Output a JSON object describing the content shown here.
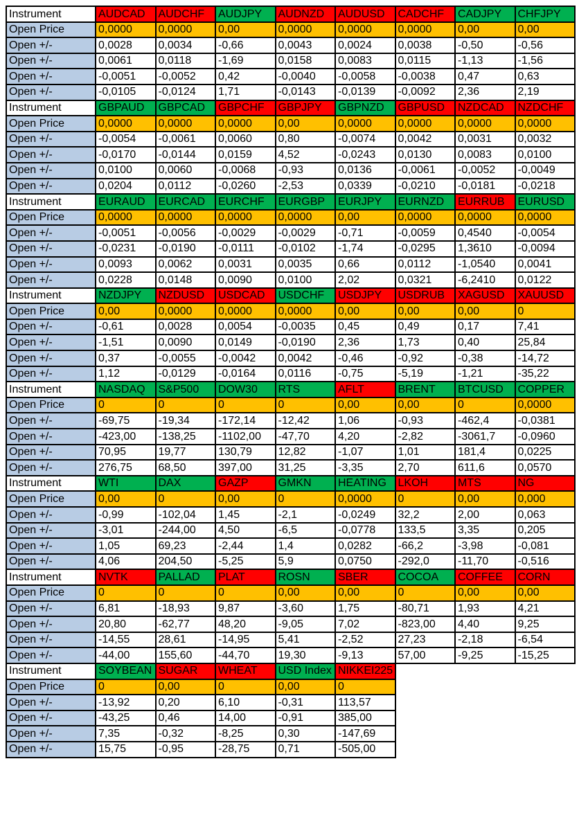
{
  "row_labels": {
    "instrument": "Instrument",
    "open_price": "Open Price",
    "open_delta": "Open +/-"
  },
  "colors": {
    "header_red": "#FF0000",
    "header_green": "#00B050",
    "price_orange": "#FFC000",
    "label_blue": "#B8CCE4",
    "border_black": "#000000"
  },
  "blocks": [
    {
      "instruments": [
        {
          "name": "AUDCAD",
          "header_color": "red",
          "open_price": "0,0000",
          "deltas": [
            "0,0028",
            "0,0061",
            "-0,0051",
            "-0,0105"
          ]
        },
        {
          "name": "AUDCHF",
          "header_color": "red",
          "open_price": "0,0000",
          "deltas": [
            "0,0034",
            "0,0118",
            "-0,0052",
            "-0,0124"
          ]
        },
        {
          "name": "AUDJPY",
          "header_color": "green",
          "open_price": "0,00",
          "deltas": [
            "-0,66",
            "-1,69",
            "0,42",
            "1,71"
          ]
        },
        {
          "name": "AUDNZD",
          "header_color": "red",
          "open_price": "0,0000",
          "deltas": [
            "0,0043",
            "0,0158",
            "-0,0040",
            "-0,0143"
          ]
        },
        {
          "name": "AUDUSD",
          "header_color": "red",
          "open_price": "0,0000",
          "deltas": [
            "0,0024",
            "0,0083",
            "-0,0058",
            "-0,0139"
          ]
        },
        {
          "name": "CADCHF",
          "header_color": "red",
          "open_price": "0,0000",
          "deltas": [
            "0,0038",
            "0,0115",
            "-0,0038",
            "-0,0092"
          ]
        },
        {
          "name": "CADJPY",
          "header_color": "green",
          "open_price": "0,00",
          "deltas": [
            "-0,50",
            "-1,13",
            "0,47",
            "2,36"
          ]
        },
        {
          "name": "CHFJPY",
          "header_color": "green",
          "open_price": "0,00",
          "deltas": [
            "-0,56",
            "-1,56",
            "0,63",
            "2,19"
          ]
        }
      ]
    },
    {
      "instruments": [
        {
          "name": "GBPAUD",
          "header_color": "green",
          "open_price": "0,0000",
          "deltas": [
            "-0,0054",
            "-0,0170",
            "0,0100",
            "0,0204"
          ]
        },
        {
          "name": "GBPCAD",
          "header_color": "green",
          "open_price": "0,0000",
          "deltas": [
            "-0,0061",
            "-0,0144",
            "0,0060",
            "0,0112"
          ]
        },
        {
          "name": "GBPCHF",
          "header_color": "red",
          "open_price": "0,0000",
          "deltas": [
            "0,0060",
            "0,0159",
            "-0,0068",
            "-0,0260"
          ]
        },
        {
          "name": "GBPJPY",
          "header_color": "red",
          "open_price": "0,00",
          "deltas": [
            "0,80",
            "4,52",
            "-0,93",
            "-2,53"
          ]
        },
        {
          "name": "GBPNZD",
          "header_color": "green",
          "open_price": "0,0000",
          "deltas": [
            "-0,0074",
            "-0,0243",
            "0,0136",
            "0,0339"
          ]
        },
        {
          "name": "GBPUSD",
          "header_color": "red",
          "open_price": "0,0000",
          "deltas": [
            "0,0042",
            "0,0130",
            "-0,0061",
            "-0,0210"
          ]
        },
        {
          "name": "NZDCAD",
          "header_color": "red",
          "open_price": "0,0000",
          "deltas": [
            "0,0031",
            "0,0083",
            "-0,0052",
            "-0,0181"
          ]
        },
        {
          "name": "NZDCHF",
          "header_color": "red",
          "open_price": "0,0000",
          "deltas": [
            "0,0032",
            "0,0100",
            "-0,0049",
            "-0,0218"
          ]
        }
      ]
    },
    {
      "instruments": [
        {
          "name": "EURAUD",
          "header_color": "green",
          "open_price": "0,0000",
          "deltas": [
            "-0,0051",
            "-0,0231",
            "0,0093",
            "0,0228"
          ]
        },
        {
          "name": "EURCAD",
          "header_color": "green",
          "open_price": "0,0000",
          "deltas": [
            "-0,0056",
            "-0,0190",
            "0,0062",
            "0,0148"
          ]
        },
        {
          "name": "EURCHF",
          "header_color": "green",
          "open_price": "0,0000",
          "deltas": [
            "-0,0029",
            "-0,0111",
            "0,0031",
            "0,0090"
          ]
        },
        {
          "name": "EURGBP",
          "header_color": "green",
          "open_price": "0,0000",
          "deltas": [
            "-0,0029",
            "-0,0102",
            "0,0035",
            "0,0100"
          ]
        },
        {
          "name": "EURJPY",
          "header_color": "green",
          "open_price": "0,00",
          "deltas": [
            "-0,71",
            "-1,74",
            "0,66",
            "2,02"
          ]
        },
        {
          "name": "EURNZD",
          "header_color": "green",
          "open_price": "0,0000",
          "deltas": [
            "-0,0059",
            "-0,0295",
            "0,0112",
            "0,0321"
          ]
        },
        {
          "name": "EURRUB",
          "header_color": "red",
          "open_price": "0,0000",
          "deltas": [
            "0,4540",
            "1,3610",
            "-1,0540",
            "-6,2410"
          ]
        },
        {
          "name": "EURUSD",
          "header_color": "green",
          "open_price": "0,0000",
          "deltas": [
            "-0,0054",
            "-0,0094",
            "0,0041",
            "0,0122"
          ]
        }
      ]
    },
    {
      "instruments": [
        {
          "name": "NZDJPY",
          "header_color": "green",
          "open_price": "0,00",
          "deltas": [
            "-0,61",
            "-1,51",
            "0,37",
            "1,12"
          ]
        },
        {
          "name": "NZDUSD",
          "header_color": "red",
          "open_price": "0,0000",
          "deltas": [
            "0,0028",
            "0,0090",
            "-0,0055",
            "-0,0129"
          ]
        },
        {
          "name": "USDCAD",
          "header_color": "red",
          "open_price": "0,0000",
          "deltas": [
            "0,0054",
            "0,0149",
            "-0,0042",
            "-0,0164"
          ]
        },
        {
          "name": "USDCHF",
          "header_color": "green",
          "open_price": "0,0000",
          "deltas": [
            "-0,0035",
            "-0,0190",
            "0,0042",
            "0,0116"
          ]
        },
        {
          "name": "USDJPY",
          "header_color": "red",
          "open_price": "0,00",
          "deltas": [
            "0,45",
            "2,36",
            "-0,46",
            "-0,75"
          ]
        },
        {
          "name": "USDRUB",
          "header_color": "red",
          "open_price": "0,00",
          "deltas": [
            "0,49",
            "1,73",
            "-0,92",
            "-5,19"
          ]
        },
        {
          "name": "XAGUSD",
          "header_color": "red",
          "open_price": "0,00",
          "deltas": [
            "0,17",
            "0,40",
            "-0,38",
            "-1,21"
          ]
        },
        {
          "name": "XAUUSD",
          "header_color": "red",
          "open_price": "0",
          "deltas": [
            "7,41",
            "25,84",
            "-14,72",
            "-35,22"
          ]
        }
      ]
    },
    {
      "instruments": [
        {
          "name": "NASDAQ",
          "header_color": "green",
          "open_price": "0",
          "deltas": [
            "-69,75",
            "-423,00",
            "70,95",
            "276,75"
          ]
        },
        {
          "name": "S&P500",
          "header_color": "green",
          "open_price": "0",
          "deltas": [
            "-19,34",
            "-138,25",
            "19,77",
            "68,50"
          ]
        },
        {
          "name": "DOW30",
          "header_color": "green",
          "open_price": "0",
          "deltas": [
            "-172,14",
            "-1102,00",
            "130,79",
            "397,00"
          ]
        },
        {
          "name": "RTS",
          "header_color": "green",
          "open_price": "0",
          "deltas": [
            "-12,42",
            "-47,70",
            "12,82",
            "31,25"
          ]
        },
        {
          "name": "AFLT",
          "header_color": "red",
          "open_price": "0,00",
          "deltas": [
            "1,06",
            "4,20",
            "-1,07",
            "-3,35"
          ]
        },
        {
          "name": "BRENT",
          "header_color": "green",
          "open_price": "0,00",
          "deltas": [
            "-0,93",
            "-2,82",
            "1,01",
            "2,70"
          ]
        },
        {
          "name": "BTCUSD",
          "header_color": "green",
          "open_price": "0",
          "deltas": [
            "-462,4",
            "-3061,7",
            "181,4",
            "611,6"
          ]
        },
        {
          "name": "COPPER",
          "header_color": "green",
          "open_price": "0,0000",
          "deltas": [
            "-0,0381",
            "-0,0960",
            "0,0225",
            "0,0570"
          ]
        }
      ]
    },
    {
      "instruments": [
        {
          "name": "WTI",
          "header_color": "green",
          "open_price": "0,00",
          "deltas": [
            "-0,99",
            "-3,01",
            "1,05",
            "4,06"
          ]
        },
        {
          "name": "DAX",
          "header_color": "green",
          "open_price": "0",
          "deltas": [
            "-102,04",
            "-244,00",
            "69,23",
            "204,50"
          ]
        },
        {
          "name": "GAZP",
          "header_color": "red",
          "open_price": "0,00",
          "deltas": [
            "1,45",
            "4,50",
            "-2,44",
            "-5,25"
          ]
        },
        {
          "name": "GMKN",
          "header_color": "green",
          "open_price": "0",
          "deltas": [
            "-2,1",
            "-6,5",
            "1,4",
            "5,9"
          ]
        },
        {
          "name": "HEATING",
          "header_color": "green",
          "open_price": "0,0000",
          "deltas": [
            "-0,0249",
            "-0,0778",
            "0,0282",
            "0,0750"
          ]
        },
        {
          "name": "LKOH",
          "header_color": "red",
          "open_price": "0",
          "deltas": [
            "32,2",
            "133,5",
            "-66,2",
            "-292,0"
          ]
        },
        {
          "name": "MTS",
          "header_color": "red",
          "open_price": "0,00",
          "deltas": [
            "2,00",
            "3,35",
            "-3,98",
            "-11,70"
          ]
        },
        {
          "name": "NG",
          "header_color": "red",
          "open_price": "0,000",
          "deltas": [
            "0,063",
            "0,205",
            "-0,081",
            "-0,516"
          ]
        }
      ]
    },
    {
      "instruments": [
        {
          "name": "NVTK",
          "header_color": "red",
          "open_price": "0",
          "deltas": [
            "6,81",
            "20,80",
            "-14,55",
            "-44,00"
          ]
        },
        {
          "name": "PALLAD",
          "header_color": "green",
          "open_price": "0",
          "deltas": [
            "-18,93",
            "-62,77",
            "28,61",
            "155,60"
          ]
        },
        {
          "name": "PLAT",
          "header_color": "red",
          "open_price": "0",
          "deltas": [
            "9,87",
            "48,20",
            "-14,95",
            "-44,70"
          ]
        },
        {
          "name": "ROSN",
          "header_color": "green",
          "open_price": "0,00",
          "deltas": [
            "-3,60",
            "-9,05",
            "5,41",
            "19,30"
          ]
        },
        {
          "name": "SBER",
          "header_color": "red",
          "open_price": "0,00",
          "deltas": [
            "1,75",
            "7,02",
            "-2,52",
            "-9,13"
          ]
        },
        {
          "name": "COCOA",
          "header_color": "green",
          "open_price": "0",
          "deltas": [
            "-80,71",
            "-823,00",
            "27,23",
            "57,00"
          ]
        },
        {
          "name": "COFFEE",
          "header_color": "red",
          "open_price": "0,00",
          "deltas": [
            "1,93",
            "4,40",
            "-2,18",
            "-9,25"
          ]
        },
        {
          "name": "CORN",
          "header_color": "red",
          "open_price": "0,00",
          "deltas": [
            "4,21",
            "9,25",
            "-6,54",
            "-15,25"
          ]
        }
      ]
    },
    {
      "instruments": [
        {
          "name": "SOYBEAN",
          "header_color": "green",
          "open_price": "0",
          "deltas": [
            "-13,92",
            "-43,25",
            "7,35",
            "15,75"
          ]
        },
        {
          "name": "SUGAR",
          "header_color": "red",
          "open_price": "0,00",
          "deltas": [
            "0,20",
            "0,46",
            "-0,32",
            "-0,95"
          ]
        },
        {
          "name": "WHEAT",
          "header_color": "red",
          "open_price": "0",
          "deltas": [
            "6,10",
            "14,00",
            "-8,25",
            "-28,75"
          ]
        },
        {
          "name": "USD Index",
          "header_color": "green",
          "open_price": "0,00",
          "deltas": [
            "-0,31",
            "-0,91",
            "0,30",
            "0,71"
          ]
        },
        {
          "name": "NIKKEI225",
          "header_color": "red",
          "open_price": "0",
          "deltas": [
            "113,57",
            "385,00",
            "-147,69",
            "-505,00"
          ]
        }
      ]
    }
  ]
}
